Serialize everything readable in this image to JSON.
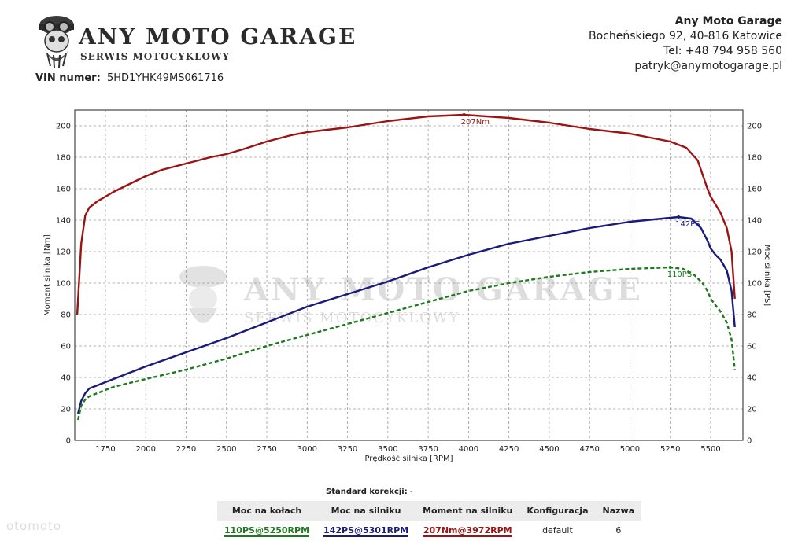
{
  "header": {
    "logo_title": "ANY MOTO GARAGE",
    "logo_subtitle": "SERWIS MOTOCYKLOWY",
    "vin_label": "VIN numer:",
    "vin_value": "5HD1YHK49MS061716"
  },
  "company": {
    "name": "Any Moto Garage",
    "address": "Bocheńskiego 92, 40-816 Katowice",
    "phone": "Tel: +48 794 958 560",
    "email": "patryk@anymotogarage.pl"
  },
  "watermark": {
    "title": "ANY MOTO GARAGE",
    "subtitle": "SERWIS MOTOCYKLOWY"
  },
  "chart_data": {
    "type": "line",
    "xlabel": "Prędkość silnika [RPM]",
    "ylabel": "Moment silnika [Nm]",
    "y2label": "Moc silnika [PS]",
    "xlim": [
      1560,
      5700
    ],
    "ylim": [
      0,
      210
    ],
    "y2lim": [
      0,
      210
    ],
    "xticks": [
      1750,
      2000,
      2250,
      2500,
      2750,
      3000,
      3250,
      3500,
      3750,
      4000,
      4250,
      4500,
      4750,
      5000,
      5250,
      5500
    ],
    "yticks": [
      0,
      20,
      40,
      60,
      80,
      100,
      120,
      140,
      160,
      180,
      200
    ],
    "grid": true,
    "colors": {
      "torque": "#9a1414",
      "engine_power": "#1a1a7a",
      "wheel_power": "#1f7a1f"
    },
    "series": [
      {
        "key": "torque",
        "axis": "left",
        "style": "solid",
        "x": [
          1575,
          1600,
          1625,
          1650,
          1700,
          1750,
          1800,
          1900,
          2000,
          2100,
          2250,
          2400,
          2500,
          2600,
          2750,
          2900,
          3000,
          3250,
          3500,
          3750,
          3972,
          4250,
          4500,
          4750,
          5000,
          5250,
          5350,
          5420,
          5480,
          5500,
          5530,
          5560,
          5600,
          5630,
          5650
        ],
        "y": [
          80,
          125,
          143,
          148,
          152,
          155,
          158,
          163,
          168,
          172,
          176,
          180,
          182,
          185,
          190,
          194,
          196,
          199,
          203,
          206,
          207,
          205,
          202,
          198,
          195,
          190,
          186,
          178,
          160,
          155,
          150,
          145,
          135,
          120,
          90
        ]
      },
      {
        "key": "engine_power",
        "axis": "right",
        "style": "solid",
        "x": [
          1580,
          1600,
          1625,
          1650,
          1700,
          1800,
          2000,
          2250,
          2500,
          2750,
          3000,
          3250,
          3500,
          3750,
          4000,
          4250,
          4500,
          4750,
          5000,
          5200,
          5301,
          5380,
          5440,
          5480,
          5500,
          5530,
          5560,
          5600,
          5630,
          5650
        ],
        "y": [
          17,
          25,
          30,
          33,
          35,
          39,
          47,
          56,
          65,
          75,
          85,
          93,
          101,
          110,
          118,
          125,
          130,
          135,
          139,
          141,
          142,
          141,
          135,
          127,
          122,
          118,
          115,
          108,
          95,
          72
        ]
      },
      {
        "key": "wheel_power",
        "axis": "right",
        "style": "dashed",
        "x": [
          1580,
          1600,
          1625,
          1650,
          1700,
          1800,
          2000,
          2250,
          2500,
          2750,
          3000,
          3250,
          3500,
          3750,
          4000,
          4250,
          4500,
          4750,
          5000,
          5250,
          5330,
          5400,
          5450,
          5480,
          5500,
          5530,
          5560,
          5600,
          5630,
          5650
        ],
        "y": [
          13,
          22,
          26,
          28,
          30,
          34,
          39,
          45,
          52,
          60,
          67,
          74,
          81,
          88,
          95,
          100,
          104,
          107,
          109,
          110,
          109,
          105,
          100,
          95,
          90,
          86,
          82,
          75,
          64,
          45
        ]
      }
    ],
    "annotations": [
      {
        "series": "torque",
        "x": 3972,
        "y": 207,
        "text": "207Nm"
      },
      {
        "series": "engine_power",
        "x": 5301,
        "y": 142,
        "text": "142PS"
      },
      {
        "series": "wheel_power",
        "x": 5250,
        "y": 110,
        "text": "110PS"
      }
    ]
  },
  "results": {
    "standard_label": "Standard korekcji:",
    "standard_value": "-",
    "headers": [
      "Moc na kołach",
      "Moc na silniku",
      "Moment na silniku",
      "Konfiguracja",
      "Nazwa"
    ],
    "row": [
      "110PS@5250RPM",
      "142PS@5301RPM",
      "207Nm@3972RPM",
      "default",
      "6"
    ]
  },
  "footer": {
    "watermark_text": "otomoto"
  }
}
